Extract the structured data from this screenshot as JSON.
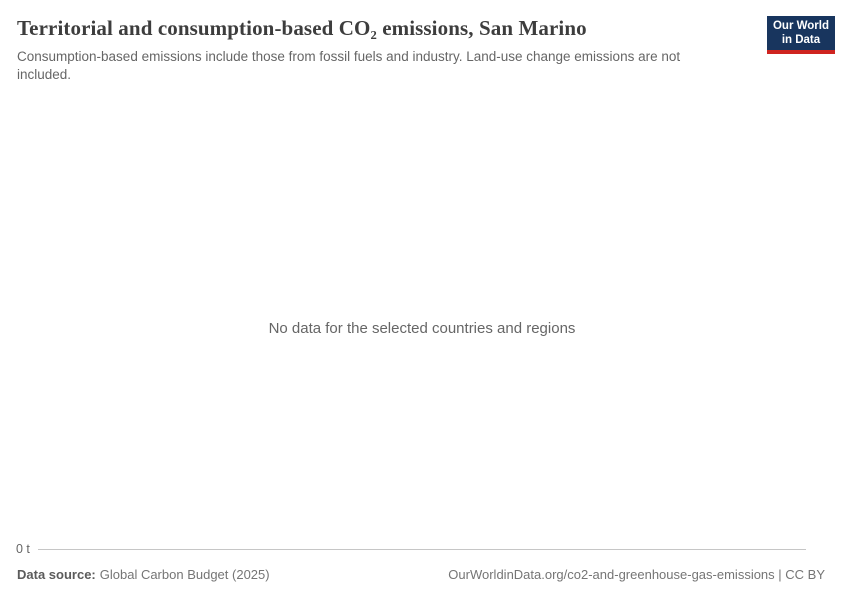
{
  "header": {
    "title": "Territorial and consumption-based CO₂ emissions, San Marino",
    "subtitle": "Consumption-based emissions include those from fossil fuels and industry. Land-use change emissions are not included."
  },
  "logo": {
    "line1": "Our World",
    "line2": "in Data"
  },
  "chart": {
    "no_data_message": "No data for the selected countries and regions",
    "y_axis_tick": "0 t"
  },
  "footer": {
    "data_source_label": "Data source:",
    "data_source_value": "Global Carbon Budget (2025)",
    "attribution": "OurWorldinData.org/co2-and-greenhouse-gas-emissions | CC BY"
  },
  "colors": {
    "title_text": "#3d3d3d",
    "subtitle_text": "#666666",
    "footer_text": "#757575",
    "axis_line": "#c6c6c6",
    "logo_background": "#18355e",
    "logo_accent_red": "#cf2420"
  },
  "chart_data": {
    "type": "line",
    "title": "Territorial and consumption-based CO₂ emissions, San Marino",
    "subtitle": "Consumption-based emissions include those from fossil fuels and industry. Land-use change emissions are not included.",
    "entity": "San Marino",
    "series": [],
    "no_data": true,
    "no_data_message": "No data for the selected countries and regions",
    "ylabel": "",
    "yticks": [
      "0 t"
    ],
    "ylim": [
      0,
      null
    ],
    "grid": false,
    "legend_position": "none",
    "data_source": "Global Carbon Budget (2025)"
  }
}
